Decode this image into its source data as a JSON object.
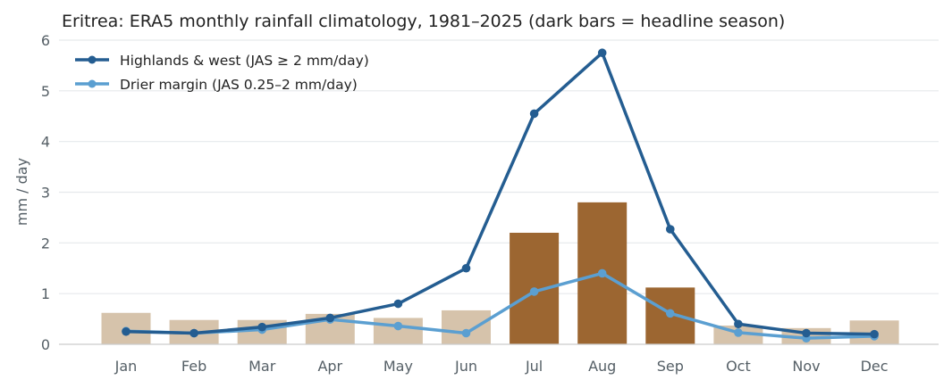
{
  "chart_data": {
    "type": "bar+line",
    "title": "Eritrea: ERA5 monthly rainfall climatology, 1981–2025 (dark bars = headline season)",
    "xlabel": "",
    "ylabel": "mm / day",
    "ylim": [
      0,
      6
    ],
    "yticks": [
      "0",
      "1",
      "2",
      "3",
      "4",
      "5",
      "6"
    ],
    "categories": [
      "Jan",
      "Feb",
      "Mar",
      "Apr",
      "May",
      "Jun",
      "Jul",
      "Aug",
      "Sep",
      "Oct",
      "Nov",
      "Dec"
    ],
    "bars": {
      "values": [
        0.62,
        0.48,
        0.48,
        0.6,
        0.52,
        0.67,
        2.2,
        2.8,
        1.12,
        0.37,
        0.32,
        0.47
      ],
      "highlight": [
        false,
        false,
        false,
        false,
        false,
        false,
        true,
        true,
        true,
        false,
        false,
        false
      ],
      "color": "#d6c3ab",
      "highlight_color": "#9c6631"
    },
    "series": [
      {
        "name": "Highlands & west (JAS ≥ 2 mm/day)",
        "values": [
          0.25,
          0.22,
          0.34,
          0.52,
          0.8,
          1.5,
          4.55,
          5.75,
          2.27,
          0.4,
          0.22,
          0.2
        ],
        "color": "#245d91"
      },
      {
        "name": "Drier margin (JAS 0.25–2 mm/day)",
        "values": [
          0.26,
          0.22,
          0.29,
          0.49,
          0.36,
          0.22,
          1.04,
          1.4,
          0.61,
          0.23,
          0.12,
          0.16
        ],
        "color": "#5b9fd1"
      }
    ],
    "grid": true,
    "legend_position": "top-left"
  }
}
